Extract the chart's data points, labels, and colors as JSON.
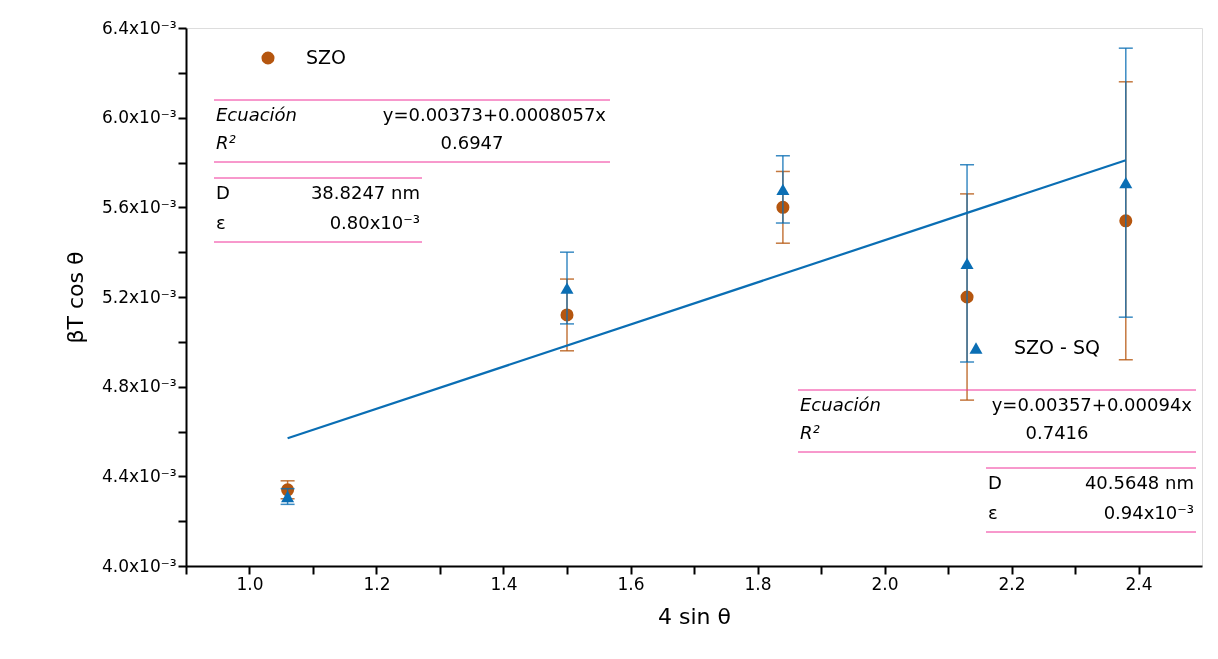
{
  "chart_data": {
    "type": "scatter",
    "xlabel": "4 sin θ",
    "ylabel": "βT cos θ",
    "xlim": [
      0.9,
      2.5
    ],
    "ylim": [
      0.004,
      0.0064
    ],
    "xticks": [
      {
        "value": 0.9,
        "label": null
      },
      {
        "value": 1.0,
        "label": "1.0"
      },
      {
        "value": 1.1,
        "label": null
      },
      {
        "value": 1.2,
        "label": "1.2"
      },
      {
        "value": 1.3,
        "label": null
      },
      {
        "value": 1.4,
        "label": "1.4"
      },
      {
        "value": 1.5,
        "label": null
      },
      {
        "value": 1.6,
        "label": "1.6"
      },
      {
        "value": 1.7,
        "label": null
      },
      {
        "value": 1.8,
        "label": "1.8"
      },
      {
        "value": 1.9,
        "label": null
      },
      {
        "value": 2.0,
        "label": "2.0"
      },
      {
        "value": 2.1,
        "label": null
      },
      {
        "value": 2.2,
        "label": "2.2"
      },
      {
        "value": 2.3,
        "label": null
      },
      {
        "value": 2.4,
        "label": "2.4"
      }
    ],
    "yticks": [
      {
        "value": 0.004,
        "label": "4.0x10⁻³"
      },
      {
        "value": 0.0042,
        "label": null
      },
      {
        "value": 0.0044,
        "label": "4.4x10⁻³"
      },
      {
        "value": 0.0046,
        "label": null
      },
      {
        "value": 0.0048,
        "label": "4.8x10⁻³"
      },
      {
        "value": 0.005,
        "label": null
      },
      {
        "value": 0.0052,
        "label": "5.2x10⁻³"
      },
      {
        "value": 0.0054,
        "label": null
      },
      {
        "value": 0.0056,
        "label": "5.6x10⁻³"
      },
      {
        "value": 0.0058,
        "label": null
      },
      {
        "value": 0.006,
        "label": "6.0x10⁻³"
      },
      {
        "value": 0.0062,
        "label": null
      },
      {
        "value": 0.0064,
        "label": "6.4x10⁻³"
      }
    ],
    "grid": false,
    "legend": "top left",
    "series": [
      {
        "name": "SZO",
        "marker": "circle",
        "color": "#b5560f",
        "x": [
          1.06,
          1.5,
          1.84,
          2.13,
          2.38
        ],
        "values": [
          0.00434,
          0.00512,
          0.0056,
          0.0052,
          0.00554
        ],
        "errors": [
          4e-05,
          0.00016,
          0.00016,
          0.00046,
          0.00062
        ]
      },
      {
        "name": "SZO - SQ",
        "marker": "triangle",
        "color": "#0a6eb4",
        "x": [
          1.06,
          1.5,
          1.84,
          2.13,
          2.38
        ],
        "values": [
          0.00431,
          0.00524,
          0.00568,
          0.00535,
          0.00571
        ],
        "errors": [
          3.5e-05,
          0.00016,
          0.00015,
          0.00044,
          0.0006
        ]
      },
      {
        "type": "line",
        "marker": "none",
        "line_style": "solid",
        "color": "#0a6eb4",
        "x": [
          1.06,
          2.38
        ],
        "values": [
          0.00457,
          0.00581
        ]
      }
    ],
    "annotations": [
      "Ecuación",
      "y=0.00373+0.0008057x",
      "R²",
      "0.6947",
      "D",
      "38.8247 nm",
      "ε",
      "0.80x10⁻³",
      "Ecuación",
      "y=0.00357+0.00094x",
      "R²",
      "0.7416",
      "D",
      "40.5648 nm",
      "ε",
      "0.94x10⁻³"
    ]
  }
}
